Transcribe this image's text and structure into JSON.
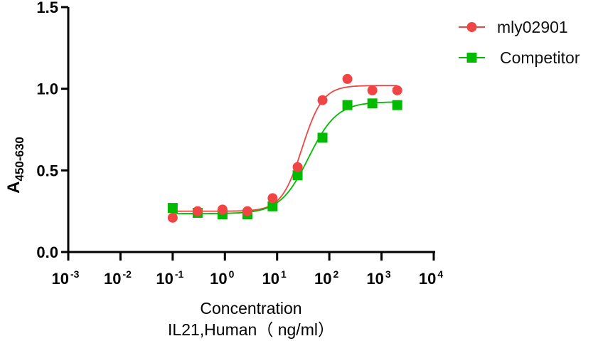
{
  "chart_data": {
    "type": "scatter",
    "title": "",
    "xlabel": "Concentration",
    "xlabel_line2": "IL21,Human（ ng/ml）",
    "ylabel": "A",
    "ylabel_subscript": "450-630",
    "xscale": "log",
    "xlim": [
      0.001,
      10000
    ],
    "ylim": [
      0.0,
      1.5
    ],
    "x_ticks": [
      {
        "value": 0.001,
        "base": "10",
        "exp": "-3"
      },
      {
        "value": 0.01,
        "base": "10",
        "exp": "-2"
      },
      {
        "value": 0.1,
        "base": "10",
        "exp": "-1"
      },
      {
        "value": 1,
        "base": "10",
        "exp": "0"
      },
      {
        "value": 10,
        "base": "10",
        "exp": "1"
      },
      {
        "value": 100,
        "base": "10",
        "exp": "2"
      },
      {
        "value": 1000,
        "base": "10",
        "exp": "3"
      },
      {
        "value": 10000,
        "base": "10",
        "exp": "4"
      }
    ],
    "y_ticks": [
      {
        "value": 0.0,
        "label": "0.0"
      },
      {
        "value": 0.5,
        "label": "0.5"
      },
      {
        "value": 1.0,
        "label": "1.0"
      },
      {
        "value": 1.5,
        "label": "1.5"
      }
    ],
    "grid": false,
    "legend_position": "top-right",
    "x": [
      0.1,
      0.3,
      0.9,
      2.7,
      8.2,
      24.7,
      74,
      222,
      667,
      2000
    ],
    "series": [
      {
        "name": "mly02901",
        "marker": "circle",
        "color": "#f04545",
        "values": [
          0.21,
          0.25,
          0.26,
          0.25,
          0.33,
          0.52,
          0.93,
          1.06,
          0.99,
          0.99
        ],
        "fit": {
          "bottom": 0.25,
          "top": 1.02,
          "ec50": 30,
          "hill": 2.2
        }
      },
      {
        "name": "Competitor",
        "marker": "square",
        "color": "#00bb00",
        "values": [
          0.27,
          0.24,
          0.23,
          0.23,
          0.28,
          0.47,
          0.7,
          0.9,
          0.91,
          0.9
        ],
        "fit": {
          "bottom": 0.235,
          "top": 0.92,
          "ec50": 40,
          "hill": 1.6
        }
      }
    ]
  }
}
